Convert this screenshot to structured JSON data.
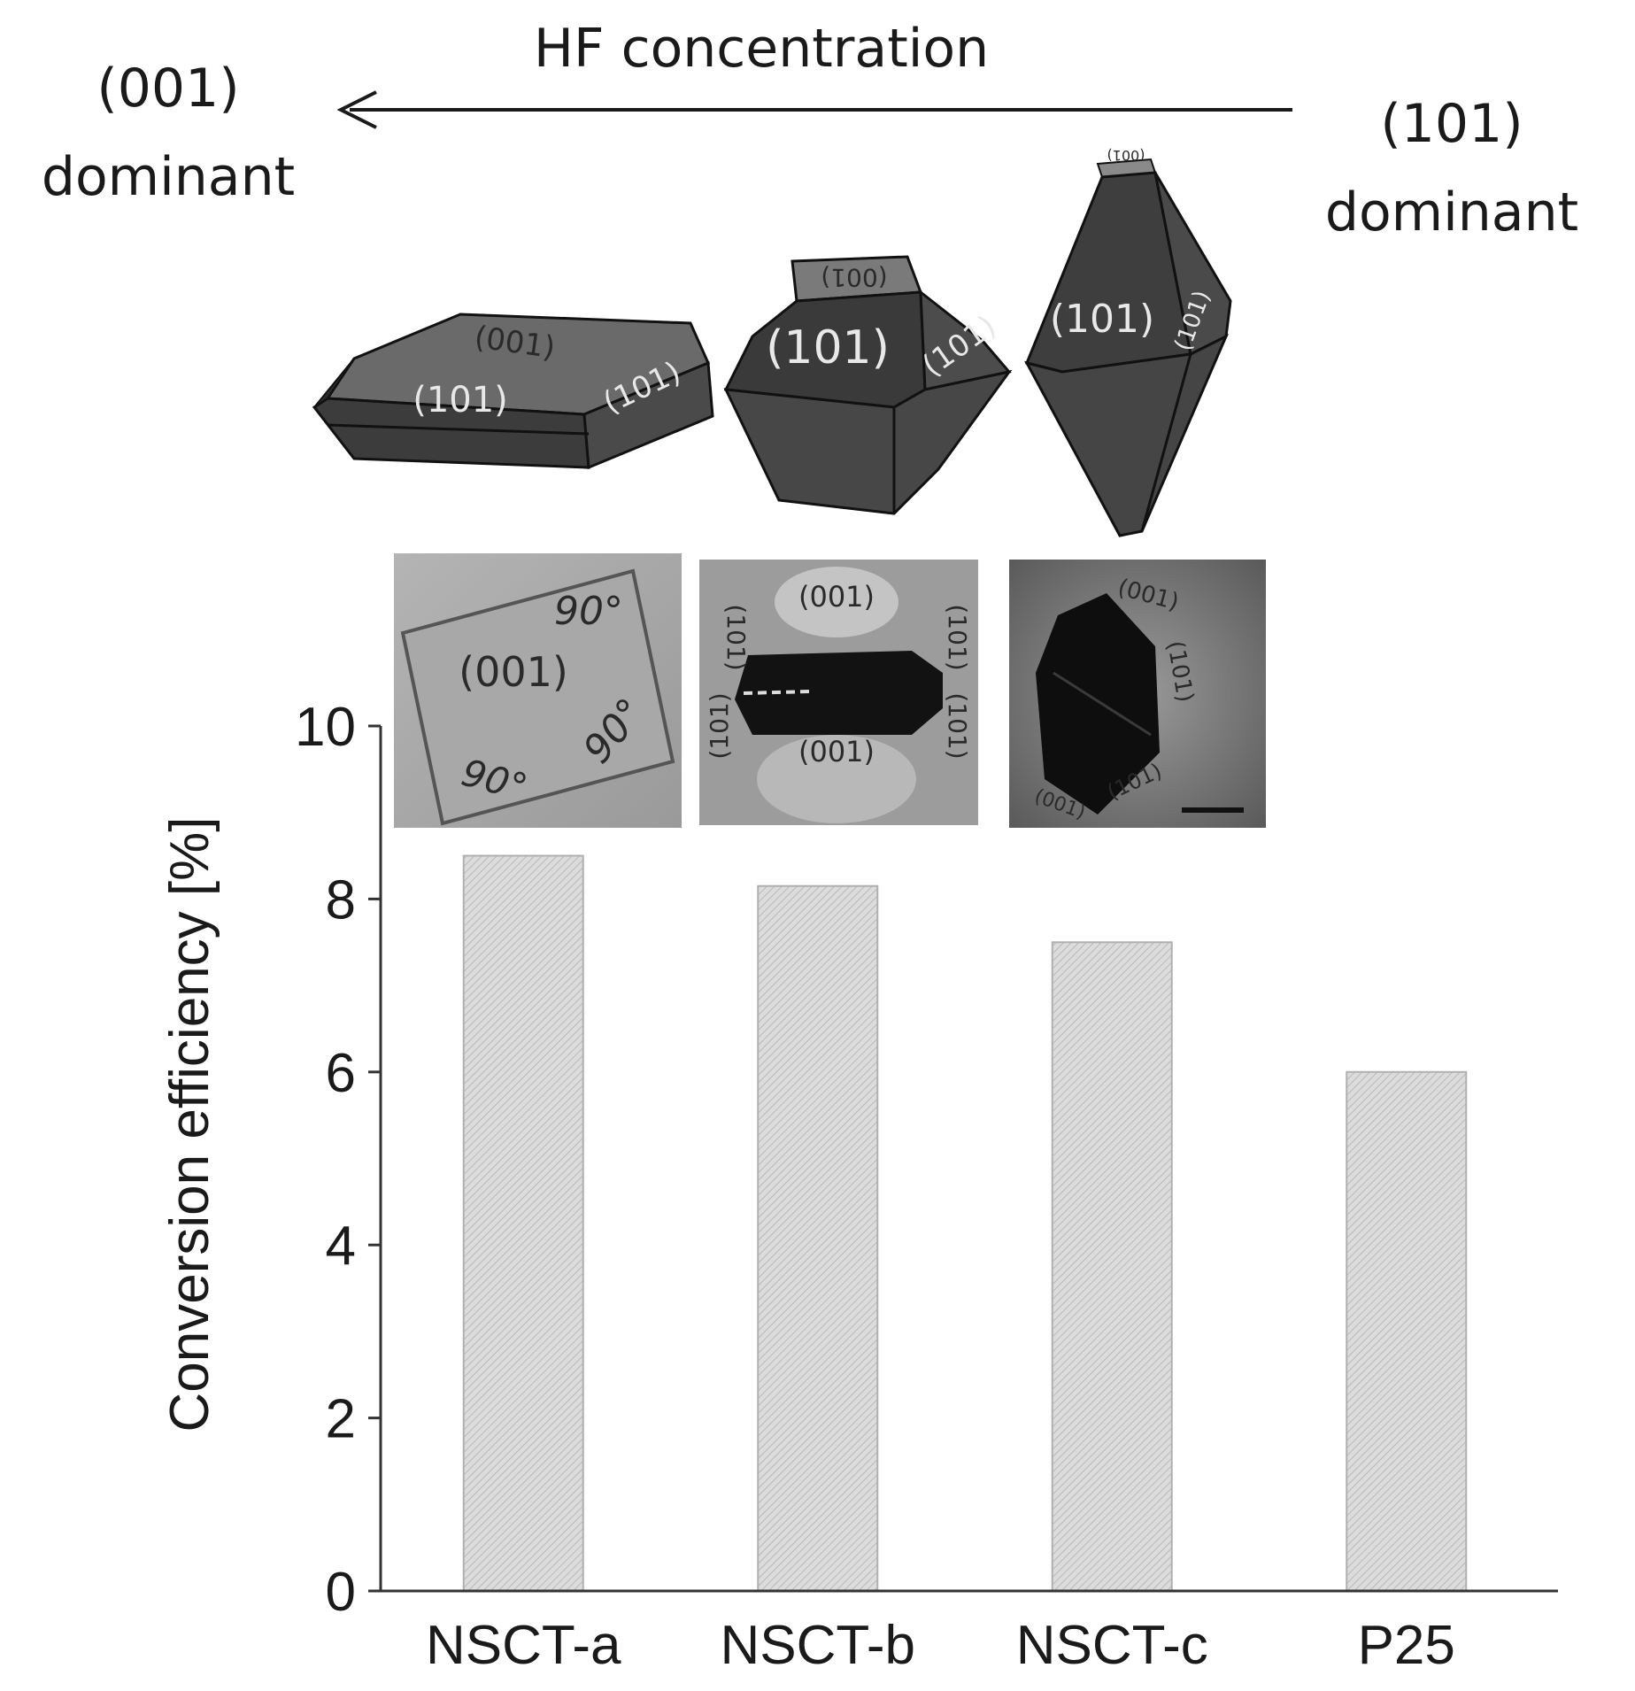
{
  "annotation": {
    "arrow_label": "HF concentration",
    "left_label_line1": "(001)",
    "left_label_line2": "dominant",
    "right_label_line1": "(101)",
    "right_label_line2": "dominant"
  },
  "crystals": [
    {
      "top_facet": "(001)",
      "front_facet": "(101)",
      "side_facet": "(101)"
    },
    {
      "top_facet": "(001)",
      "front_facet": "(101)",
      "side_facet": "(101)"
    },
    {
      "top_facet": "(001)",
      "front_facet": "(101)",
      "side_facet": "(101)"
    }
  ],
  "micrographs": [
    {
      "labels": [
        "(001)",
        "90°",
        "90°",
        "90°"
      ]
    },
    {
      "labels": [
        "(001)",
        "(001)",
        "(101)",
        "(101)",
        "(101)",
        "(101)"
      ]
    },
    {
      "labels": [
        "(001)",
        "(101)",
        "(101)",
        "(001)"
      ]
    }
  ],
  "chart_data": {
    "type": "bar",
    "categories": [
      "NSCT-a",
      "NSCT-b",
      "NSCT-c",
      "P25"
    ],
    "values": [
      8.5,
      8.15,
      7.5,
      6.0
    ],
    "ylabel": "Conversion efficiency [%]",
    "xlabel": "",
    "ylim": [
      0,
      10
    ],
    "yticks": [
      0,
      2,
      4,
      6,
      8,
      10
    ],
    "grid": false,
    "bar_fill": "#d9d9d9",
    "bar_hatch": true,
    "bar_stroke": "#b0b0b0"
  }
}
